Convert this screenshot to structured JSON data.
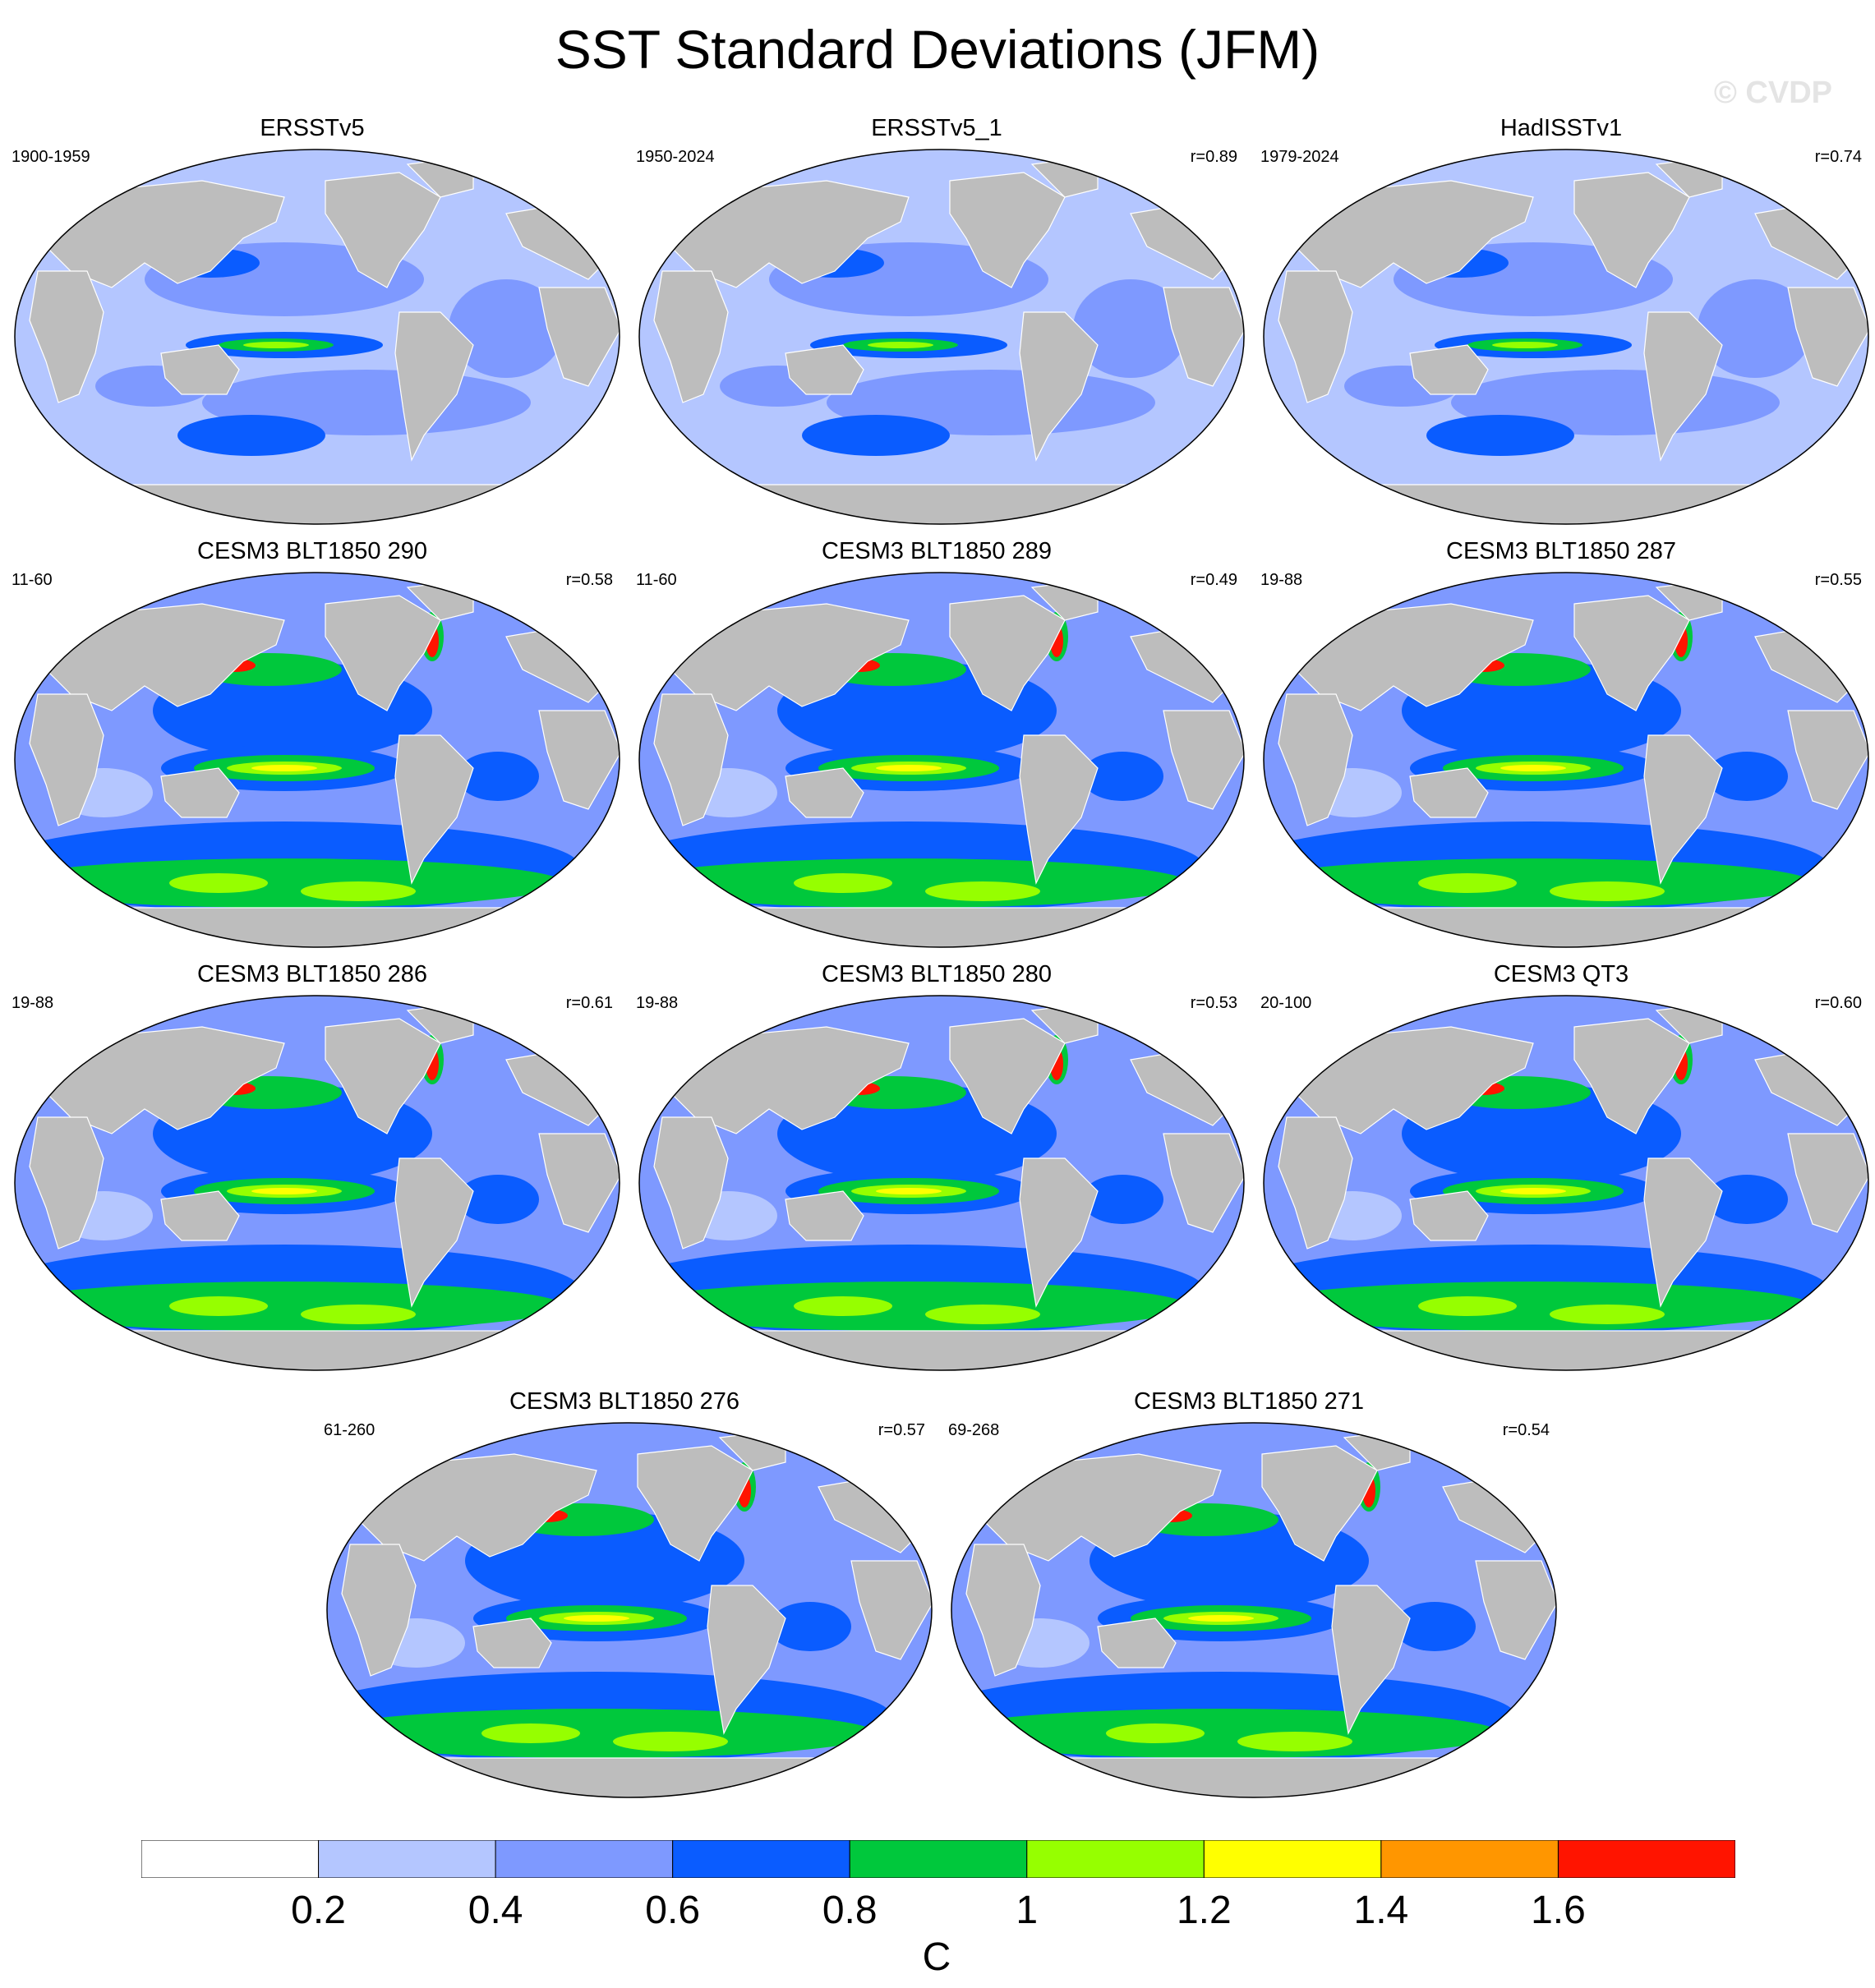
{
  "title": "SST Standard Deviations (JFM)",
  "watermark": "© CVDP",
  "panels": [
    {
      "title": "ERSSTv5",
      "period": "1900-1959",
      "corr": ""
    },
    {
      "title": "ERSSTv5_1",
      "period": "1950-2024",
      "corr": "r=0.89"
    },
    {
      "title": "HadISSTv1",
      "period": "1979-2024",
      "corr": "r=0.74"
    },
    {
      "title": "CESM3 BLT1850 290",
      "period": "11-60",
      "corr": "r=0.58"
    },
    {
      "title": "CESM3 BLT1850 289",
      "period": "11-60",
      "corr": "r=0.49"
    },
    {
      "title": "CESM3 BLT1850 287",
      "period": "19-88",
      "corr": "r=0.55"
    },
    {
      "title": "CESM3 BLT1850 286",
      "period": "19-88",
      "corr": "r=0.61"
    },
    {
      "title": "CESM3 BLT1850 280",
      "period": "19-88",
      "corr": "r=0.53"
    },
    {
      "title": "CESM3 QT3",
      "period": "20-100",
      "corr": "r=0.60"
    },
    {
      "title": "CESM3 BLT1850 276",
      "period": "61-260",
      "corr": "r=0.57"
    },
    {
      "title": "CESM3 BLT1850 271",
      "period": "69-268",
      "corr": "r=0.54"
    }
  ],
  "colorbar": {
    "colors": [
      "#ffffff",
      "#b4c6ff",
      "#7e99ff",
      "#0a5cff",
      "#00c83c",
      "#96ff00",
      "#ffff00",
      "#ff9600",
      "#ff1400"
    ],
    "ticks": [
      "0.2",
      "0.4",
      "0.6",
      "0.8",
      "1",
      "1.2",
      "1.4",
      "1.6"
    ],
    "unit": "C"
  },
  "colors": {
    "land": "#bdbdbd",
    "ocean_base": "#7e99ff"
  }
}
